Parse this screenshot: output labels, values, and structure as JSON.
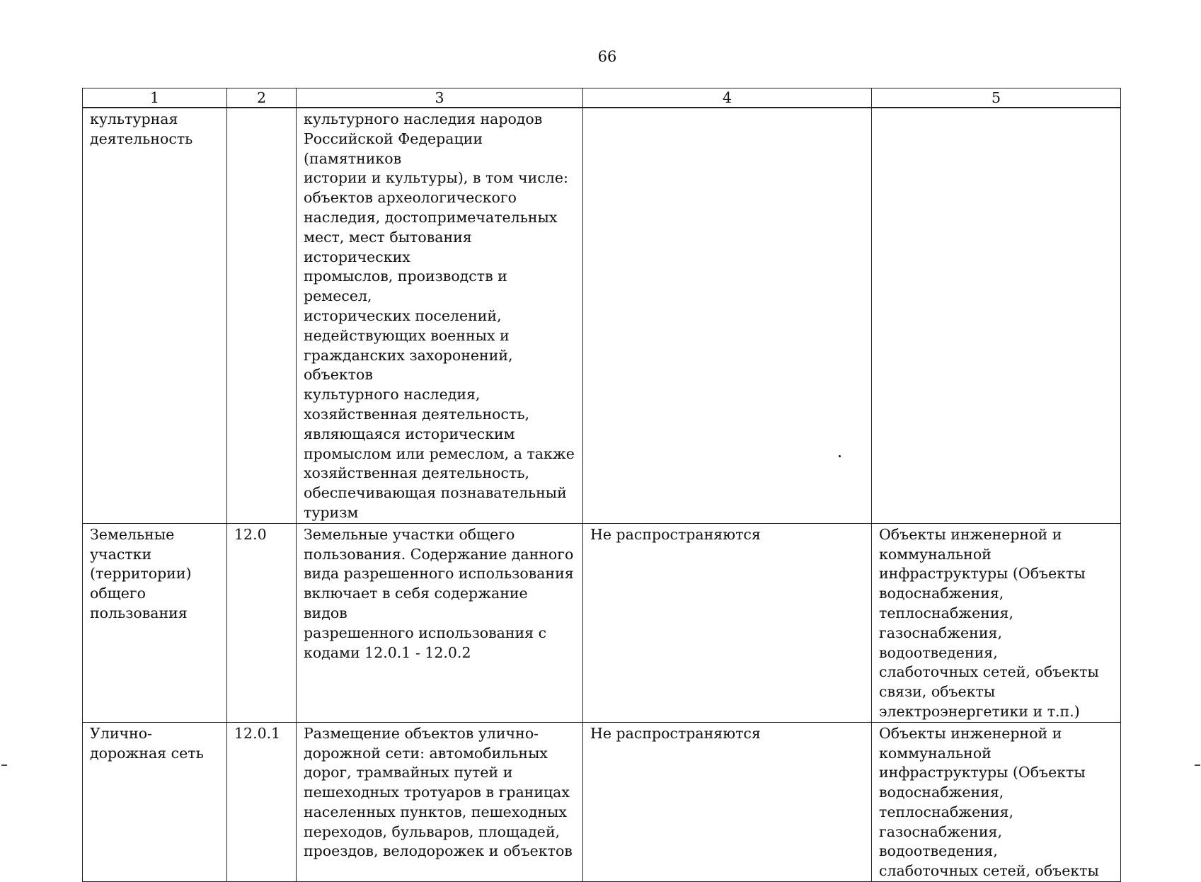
{
  "page_number": "66",
  "table": {
    "headers": [
      "1",
      "2",
      "3",
      "4",
      "5"
    ],
    "rows": [
      {
        "c1": "культурная\nдеятельность",
        "c2": "",
        "c3": "культурного наследия народов\nРоссийской Федерации (памятников\nистории и культуры), в том числе:\nобъектов археологического\nнаследия, достопримечательных\nмест, мест бытования исторических\nпромыслов, производств и ремесел,\nисторических поселений,\nнедействующих военных и\nгражданских захоронений, объектов\nкультурного наследия,\nхозяйственная деятельность,\nявляющаяся историческим\nпромыслом или ремеслом, а также\nхозяйственная деятельность,\nобеспечивающая познавательный\nтуризм",
        "c4": "",
        "c5": ""
      },
      {
        "c1": "Земельные\nучастки\n(территории)\nобщего\nпользования",
        "c2": "12.0",
        "c3": "Земельные участки общего\nпользования. Содержание данного\nвида разрешенного использования\nвключает в себя содержание видов\nразрешенного использования с\nкодами 12.0.1 - 12.0.2",
        "c4": "Не распространяются",
        "c5": "Объекты инженерной и\nкоммунальной\nинфраструктуры (Объекты\nводоснабжения,\nтеплоснабжения,\nгазоснабжения, водоотведения,\nслаботочных сетей, объекты\nсвязи, объекты\nэлектроэнергетики и т.п.)"
      },
      {
        "c1": "Улично-\nдорожная сеть",
        "c2": "12.0.1",
        "c3": "Размещение объектов улично-\nдорожной сети: автомобильных\nдорог, трамвайных путей и\nпешеходных тротуаров в границах\nнаселенных пунктов, пешеходных\nпереходов, бульваров, площадей,\nпроездов, велодорожек и объектов",
        "c4": "Не распространяются",
        "c5": "Объекты инженерной и\nкоммунальной\nинфраструктуры (Объекты\nводоснабжения,\nтеплоснабжения,\nгазоснабжения, водоотведения,\nслаботочных сетей, объекты"
      }
    ]
  }
}
